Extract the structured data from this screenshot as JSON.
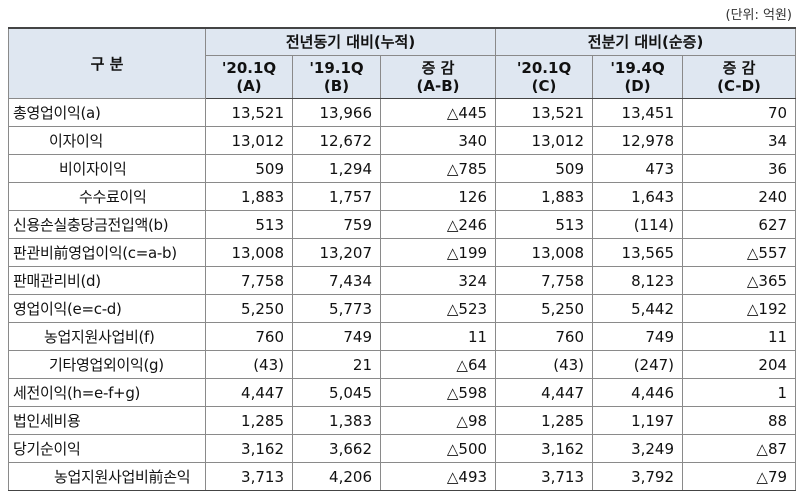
{
  "unit": "(단위: 억원)",
  "header": {
    "category": "구 분",
    "groups": [
      "전년동기 대비(누적)",
      "전분기 대비(순증)"
    ],
    "columns": [
      [
        "'20.1Q",
        "(A)"
      ],
      [
        "'19.1Q",
        "(B)"
      ],
      [
        "증 감",
        "(A-B)"
      ],
      [
        "'20.1Q",
        "(C)"
      ],
      [
        "'19.4Q",
        "(D)"
      ],
      [
        "증 감",
        "(C-D)"
      ]
    ]
  },
  "rows": [
    {
      "label": "총영업이익(a)",
      "values": [
        "13,521",
        "13,966",
        "△445",
        "13,521",
        "13,451",
        "70"
      ]
    },
    {
      "label": "이자이익",
      "values": [
        "13,012",
        "12,672",
        "340",
        "13,012",
        "12,978",
        "34"
      ]
    },
    {
      "label": "비이자이익",
      "values": [
        "509",
        "1,294",
        "△785",
        "509",
        "473",
        "36"
      ]
    },
    {
      "label": "수수료이익",
      "values": [
        "1,883",
        "1,757",
        "126",
        "1,883",
        "1,643",
        "240"
      ]
    },
    {
      "label": "신용손실충당금전입액(b)",
      "values": [
        "513",
        "759",
        "△246",
        "513",
        "(114)",
        "627"
      ]
    },
    {
      "label": "판관비前영업이익(c=a-b)",
      "values": [
        "13,008",
        "13,207",
        "△199",
        "13,008",
        "13,565",
        "△557"
      ]
    },
    {
      "label": "판매관리비(d)",
      "values": [
        "7,758",
        "7,434",
        "324",
        "7,758",
        "8,123",
        "△365"
      ]
    },
    {
      "label": "영업이익(e=c-d)",
      "values": [
        "5,250",
        "5,773",
        "△523",
        "5,250",
        "5,442",
        "△192"
      ]
    },
    {
      "label": "농업지원사업비(f)",
      "values": [
        "760",
        "749",
        "11",
        "760",
        "749",
        "11"
      ]
    },
    {
      "label": "기타영업외이익(g)",
      "values": [
        "(43)",
        "21",
        "△64",
        "(43)",
        "(247)",
        "204"
      ]
    },
    {
      "label": "세전이익(h=e-f+g)",
      "values": [
        "4,447",
        "5,045",
        "△598",
        "4,447",
        "4,446",
        "1"
      ]
    },
    {
      "label": "법인세비용",
      "values": [
        "1,285",
        "1,383",
        "△98",
        "1,285",
        "1,197",
        "88"
      ]
    },
    {
      "label": "당기순이익",
      "values": [
        "3,162",
        "3,662",
        "△500",
        "3,162",
        "3,249",
        "△87"
      ]
    },
    {
      "label": "농업지원사업비前손익",
      "values": [
        "3,713",
        "4,206",
        "△493",
        "3,713",
        "3,792",
        "△79"
      ]
    }
  ]
}
